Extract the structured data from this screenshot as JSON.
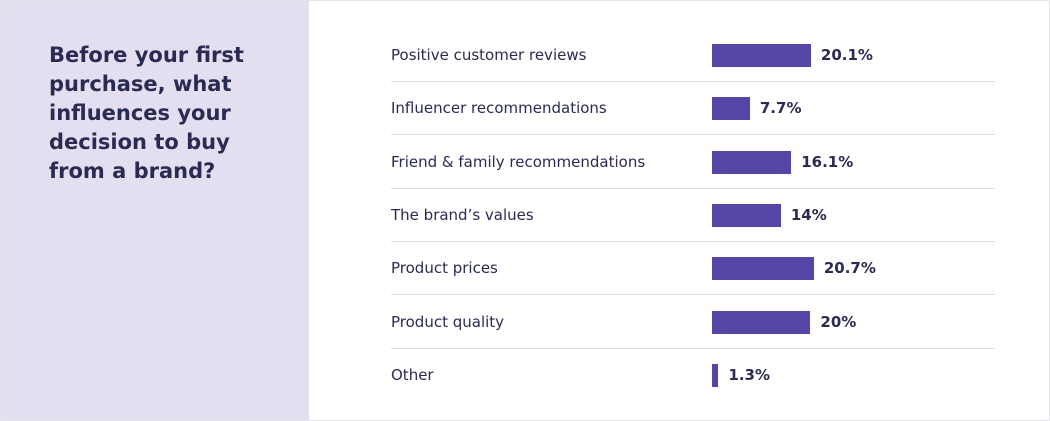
{
  "question": "Before your first purchase, what influences your decision to buy from a brand?",
  "colors": {
    "panel_background": "#e3def0",
    "bar": "#5346a6",
    "text": "#2a2a52",
    "divider": "#dcdce2"
  },
  "chart_data": {
    "type": "bar",
    "orientation": "horizontal",
    "title": "Before your first purchase, what influences your decision to buy from a brand?",
    "categories": [
      "Positive customer reviews",
      "Influencer recommendations",
      "Friend & family recommendations",
      "The brand’s values",
      "Product prices",
      "Product quality",
      "Other"
    ],
    "values": [
      20.1,
      7.7,
      16.1,
      14,
      20.7,
      20,
      1.3
    ],
    "value_labels": [
      "20.1%",
      "7.7%",
      "16.1%",
      "14%",
      "20.7%",
      "20%",
      "1.3%"
    ],
    "unit": "%",
    "grid": false,
    "legend": "none"
  }
}
